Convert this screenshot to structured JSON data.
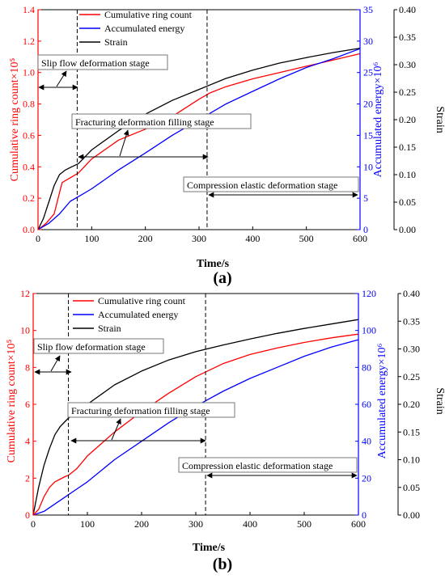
{
  "chart_data": [
    {
      "type": "line",
      "panel_label": "(a)",
      "xlabel": "Time/s",
      "ylabel_left": "Cumulative ring count×10⁵",
      "ylabel_right1": "Accumulated energy×10⁶",
      "ylabel_right2": "Strain",
      "xlim": [
        0,
        600
      ],
      "ylim_left": [
        0,
        1.4
      ],
      "ylim_right1": [
        0,
        35
      ],
      "ylim_right2": [
        0,
        0.4
      ],
      "x_ticks": [
        0,
        100,
        200,
        300,
        400,
        500,
        600
      ],
      "y_left_ticks": [
        "0.0",
        "0.2",
        "0.4",
        "0.6",
        "0.8",
        "1.0",
        "1.2",
        "1.4"
      ],
      "y_right1_ticks": [
        "0",
        "5",
        "10",
        "15",
        "20",
        "25",
        "30",
        "35"
      ],
      "y_right2_ticks": [
        "0.00",
        "0.05",
        "0.10",
        "0.15",
        "0.20",
        "0.25",
        "0.30",
        "0.35",
        "0.40"
      ],
      "colors": {
        "ring": "#ff0000",
        "energy": "#0000ff",
        "strain": "#000000",
        "left_axis": "#ff0000",
        "right1_axis": "#0000ff",
        "right2_axis": "#000000"
      },
      "legend_position": "top-left",
      "series": [
        {
          "name": "Cumulative ring count",
          "axis": "left",
          "x": [
            0,
            15,
            30,
            45,
            60,
            75,
            100,
            150,
            200,
            250,
            300,
            320,
            350,
            400,
            450,
            500,
            550,
            600
          ],
          "values": [
            0,
            0.04,
            0.1,
            0.3,
            0.33,
            0.36,
            0.45,
            0.57,
            0.64,
            0.72,
            0.83,
            0.87,
            0.91,
            0.96,
            1.0,
            1.04,
            1.08,
            1.12
          ]
        },
        {
          "name": "Accumulated energy",
          "axis": "right1",
          "x": [
            0,
            20,
            40,
            60,
            80,
            100,
            150,
            200,
            250,
            300,
            350,
            400,
            450,
            500,
            550,
            600
          ],
          "values": [
            0,
            1,
            2.5,
            4.5,
            5.5,
            6.5,
            9.5,
            12.2,
            15,
            17.5,
            20,
            22,
            24,
            25.8,
            27.2,
            28.8
          ]
        },
        {
          "name": "Strain",
          "axis": "right2",
          "x": [
            0,
            10,
            20,
            30,
            40,
            50,
            60,
            75,
            100,
            150,
            200,
            250,
            300,
            350,
            400,
            450,
            500,
            550,
            600
          ],
          "values": [
            0,
            0.02,
            0.05,
            0.08,
            0.1,
            0.108,
            0.113,
            0.12,
            0.145,
            0.18,
            0.21,
            0.235,
            0.255,
            0.275,
            0.29,
            0.303,
            0.313,
            0.322,
            0.33
          ]
        }
      ],
      "stage_lines_x": [
        73,
        315
      ],
      "annotations": [
        {
          "text": "Slip flow deformation stage"
        },
        {
          "text": "Fracturing deformation filling stage"
        },
        {
          "text": "Compression elastic deformation stage"
        }
      ]
    },
    {
      "type": "line",
      "panel_label": "(b)",
      "xlabel": "Time/s",
      "ylabel_left": "Cumulative ring count×10⁵",
      "ylabel_right1": "Accumulated energy×10⁶",
      "ylabel_right2": "Strain",
      "xlim": [
        0,
        600
      ],
      "ylim_left": [
        0,
        12
      ],
      "ylim_right1": [
        0,
        120
      ],
      "ylim_right2": [
        0,
        0.4
      ],
      "x_ticks": [
        0,
        100,
        200,
        300,
        400,
        500,
        600
      ],
      "y_left_ticks": [
        "0",
        "2",
        "4",
        "6",
        "8",
        "10",
        "12"
      ],
      "y_right1_ticks": [
        "0",
        "20",
        "40",
        "60",
        "80",
        "100",
        "120"
      ],
      "y_right2_ticks": [
        "0.00",
        "0.05",
        "0.10",
        "0.15",
        "0.20",
        "0.25",
        "0.30",
        "0.35",
        "0.40"
      ],
      "colors": {
        "ring": "#ff0000",
        "energy": "#0000ff",
        "strain": "#000000",
        "left_axis": "#ff0000",
        "right1_axis": "#0000ff",
        "right2_axis": "#000000"
      },
      "legend_position": "top-left",
      "series": [
        {
          "name": "Cumulative ring count",
          "axis": "left",
          "x": [
            0,
            10,
            20,
            30,
            40,
            50,
            60,
            65,
            80,
            100,
            150,
            200,
            250,
            300,
            350,
            400,
            450,
            500,
            550,
            600
          ],
          "values": [
            0,
            0.3,
            1.0,
            1.5,
            1.8,
            1.95,
            2.1,
            2.15,
            2.5,
            3.2,
            4.5,
            5.6,
            6.6,
            7.5,
            8.2,
            8.7,
            9.05,
            9.35,
            9.6,
            9.8
          ]
        },
        {
          "name": "Accumulated energy",
          "axis": "right1",
          "x": [
            0,
            20,
            40,
            60,
            80,
            100,
            150,
            200,
            250,
            300,
            350,
            400,
            450,
            500,
            550,
            600
          ],
          "values": [
            0,
            2,
            6,
            10,
            14,
            18,
            30,
            40,
            50,
            59,
            67,
            74,
            80,
            86,
            91,
            95
          ]
        },
        {
          "name": "Strain",
          "axis": "right2",
          "x": [
            0,
            10,
            20,
            30,
            40,
            50,
            60,
            65,
            80,
            100,
            150,
            200,
            250,
            300,
            350,
            400,
            450,
            500,
            550,
            600
          ],
          "values": [
            0,
            0.05,
            0.09,
            0.12,
            0.145,
            0.16,
            0.17,
            0.175,
            0.185,
            0.2,
            0.235,
            0.26,
            0.28,
            0.295,
            0.307,
            0.318,
            0.328,
            0.337,
            0.345,
            0.353
          ]
        }
      ],
      "stage_lines_x": [
        65,
        318
      ],
      "annotations": [
        {
          "text": "Slip flow deformation stage"
        },
        {
          "text": "Fracturing deformation filling stage"
        },
        {
          "text": "Compression elastic deformation stage"
        }
      ]
    }
  ]
}
